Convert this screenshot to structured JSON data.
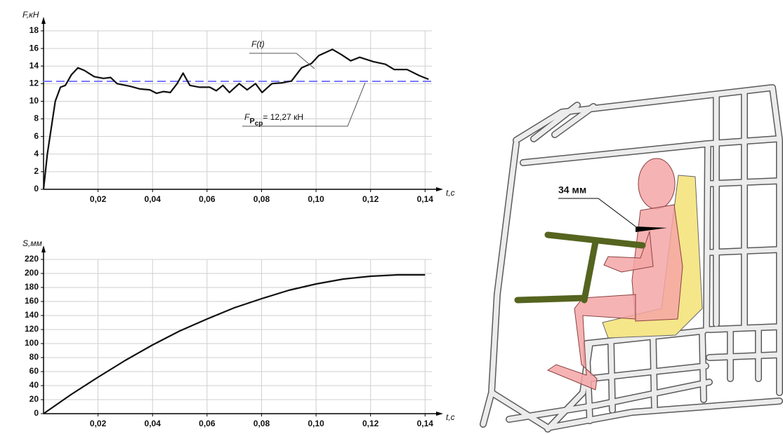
{
  "chart_data": [
    {
      "type": "line",
      "y_label": "F,кН",
      "x_label": "t,с",
      "x": [
        0,
        0.0014,
        0.0043,
        0.0062,
        0.008,
        0.0102,
        0.0126,
        0.015,
        0.0186,
        0.022,
        0.0246,
        0.027,
        0.0318,
        0.0354,
        0.039,
        0.0415,
        0.044,
        0.0465,
        0.049,
        0.0512,
        0.0537,
        0.0573,
        0.061,
        0.0634,
        0.0658,
        0.0682,
        0.0718,
        0.0747,
        0.0778,
        0.0802,
        0.0838,
        0.0875,
        0.091,
        0.0947,
        0.0983,
        0.101,
        0.106,
        0.1093,
        0.1127,
        0.116,
        0.121,
        0.1255,
        0.1287,
        0.1334,
        0.138,
        0.1413
      ],
      "series": [
        {
          "name": "F(t)",
          "color": "#111111",
          "values": [
            0,
            4,
            10,
            11.6,
            11.8,
            13,
            13.8,
            13.5,
            12.8,
            12.6,
            12.7,
            12.0,
            11.7,
            11.4,
            11.3,
            10.9,
            11.1,
            11.0,
            12.0,
            13.2,
            11.8,
            11.6,
            11.6,
            11.2,
            11.8,
            11.0,
            12.0,
            11.3,
            12.0,
            11.0,
            12.0,
            12.1,
            12.3,
            13.8,
            14.3,
            15.2,
            15.9,
            15.3,
            14.6,
            15.0,
            14.5,
            14.2,
            13.6,
            13.6,
            12.9,
            12.5
          ]
        }
      ],
      "reference_line": {
        "value": 12.27,
        "color": "#7b7bff",
        "symbol": "F",
        "subscript_1": "P",
        "subscript_2": "ср",
        "label": "= 12,27 кН"
      },
      "xlim": [
        0,
        0.1425
      ],
      "ylim": [
        0,
        18
      ],
      "xticks": [
        {
          "value": 0.02,
          "label": "0,02"
        },
        {
          "value": 0.04,
          "label": "0,04"
        },
        {
          "value": 0.06,
          "label": "0,06"
        },
        {
          "value": 0.08,
          "label": "0,08"
        },
        {
          "value": 0.1,
          "label": "0,10"
        },
        {
          "value": 0.12,
          "label": "0,12"
        },
        {
          "value": 0.14,
          "label": "0,14"
        }
      ],
      "yticks": [
        0,
        2,
        4,
        6,
        8,
        10,
        12,
        14,
        16,
        18
      ],
      "grid": true
    },
    {
      "type": "line",
      "y_label": "S,мм",
      "x_label": "t,с",
      "x": [
        0,
        0.01,
        0.02,
        0.03,
        0.04,
        0.05,
        0.06,
        0.07,
        0.08,
        0.09,
        0.1,
        0.11,
        0.12,
        0.13,
        0.14
      ],
      "series": [
        {
          "color": "#111111",
          "values": [
            0,
            27,
            52,
            76,
            98,
            118,
            135,
            151,
            164,
            176,
            185,
            192,
            196,
            198,
            198
          ]
        }
      ],
      "xlim": [
        0,
        0.1425
      ],
      "ylim": [
        0,
        220
      ],
      "xticks": [
        {
          "value": 0.02,
          "label": "0,02"
        },
        {
          "value": 0.04,
          "label": "0,04"
        },
        {
          "value": 0.06,
          "label": "0,06"
        },
        {
          "value": 0.08,
          "label": "0,08"
        },
        {
          "value": 0.1,
          "label": "0,10"
        },
        {
          "value": 0.12,
          "label": "0,12"
        },
        {
          "value": 0.14,
          "label": "0,14"
        }
      ],
      "yticks": [
        0,
        20,
        40,
        60,
        80,
        100,
        120,
        140,
        160,
        180,
        200,
        220
      ],
      "grid": true
    }
  ],
  "illustration": {
    "dimension_label": "34 мм"
  }
}
